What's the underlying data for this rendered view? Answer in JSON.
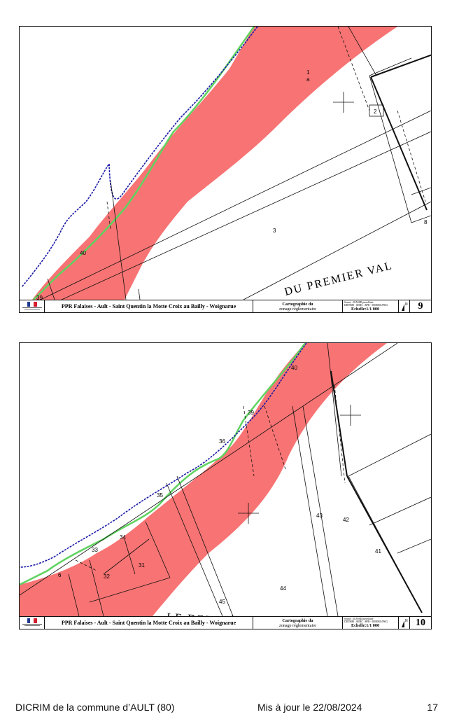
{
  "colors": {
    "hazard_zone": "#f87373",
    "cliff_edge": "#1a1aa6",
    "zone_limit": "#5fd35f",
    "flag_blue": "#1f3a93",
    "flag_red": "#d41e2e"
  },
  "panels": [
    {
      "sheet_number": "9",
      "title": "PPR Falaises - Ault - Saint Quentin la Motte Croix au Bailly - Woignarue",
      "cartography_line1": "Cartographie du",
      "cartography_line2": "zonage réglementaire",
      "source_line1": "Source : IGN-BD parcellaire",
      "source_line2": "DDTM80 : SEMC : BPR - 58050RG/PSIG",
      "scale": "Echelle:1/1 000",
      "north_label": "N",
      "road_label": "DU PREMIER VAL",
      "parcels": [
        "1",
        "a",
        "2",
        "3",
        "8",
        "40",
        "39"
      ],
      "icons": [
        "republique-francaise-logo",
        "north-arrow-icon"
      ]
    },
    {
      "sheet_number": "10",
      "title": "PPR Falaises - Ault - Saint Quentin la Motte Croix au Bailly - Woignarue",
      "cartography_line1": "Cartographie du",
      "cartography_line2": "zonage réglementaire",
      "source_line1": "Source : IGN-BD parcellaire",
      "source_line2": "DDTM80 : SEMC : BPR - 58050RG/PSIG",
      "scale": "Echelle:1/1 000",
      "north_label": "N",
      "road_label": "LE DEUXIÈME VAL",
      "parcels": [
        "40",
        "39",
        "36",
        "35",
        "34",
        "33",
        "31",
        "32",
        "6",
        "43",
        "42",
        "41",
        "44",
        "45"
      ],
      "icons": [
        "republique-francaise-logo",
        "north-arrow-icon"
      ]
    }
  ],
  "footer": {
    "left": "DICRIM de la commune d’AULT (80)",
    "center": "Mis à jour le 22/08/2024",
    "page": "17"
  }
}
